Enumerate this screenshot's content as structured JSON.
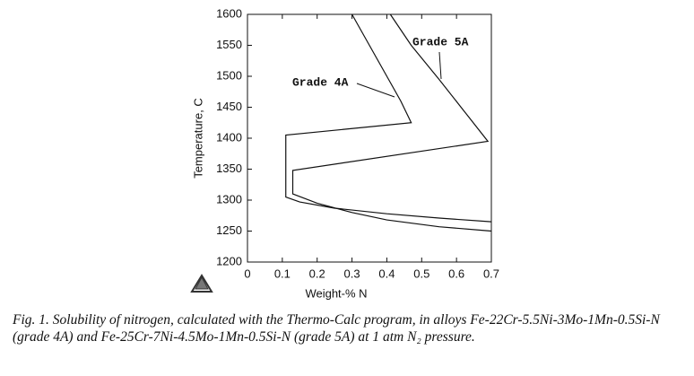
{
  "chart_data": {
    "type": "line",
    "x_label": "Weight-% N",
    "y_label": "Temperature, C",
    "caption": "Fig. 1. Solubility of nitrogen, calculated with the Thermo-Calc program, in alloys Fe-22Cr-5.5Ni-3Mo-1Mn-0.5Si-N (grade 4A) and Fe-25Cr-7Ni-4.5Mo-1Mn-0.5Si-N (grade 5A) at 1 atm N₂ pressure.",
    "xlim": [
      0,
      0.7
    ],
    "xticks": [
      0,
      0.1,
      0.2,
      0.3,
      0.4,
      0.5,
      0.6,
      0.7
    ],
    "ylim": [
      1200,
      1600
    ],
    "yticks": [
      1200,
      1250,
      1300,
      1350,
      1400,
      1450,
      1500,
      1550,
      1600
    ],
    "series": [
      {
        "name": "Grade 4A",
        "color": "#111111",
        "x": [
          0.3,
          0.35,
          0.4,
          0.44,
          0.47,
          0.11,
          0.11,
          0.15,
          0.25,
          0.4,
          0.55,
          0.7
        ],
        "values": [
          1600,
          1550,
          1500,
          1460,
          1425,
          1405,
          1305,
          1297,
          1287,
          1278,
          1271,
          1265
        ]
      },
      {
        "name": "Grade 5A",
        "color": "#111111",
        "x": [
          0.41,
          0.47,
          0.55,
          0.62,
          0.69,
          0.13,
          0.13,
          0.2,
          0.3,
          0.4,
          0.55,
          0.7
        ],
        "values": [
          1600,
          1550,
          1495,
          1445,
          1395,
          1348,
          1310,
          1295,
          1280,
          1268,
          1257,
          1250
        ]
      }
    ]
  }
}
